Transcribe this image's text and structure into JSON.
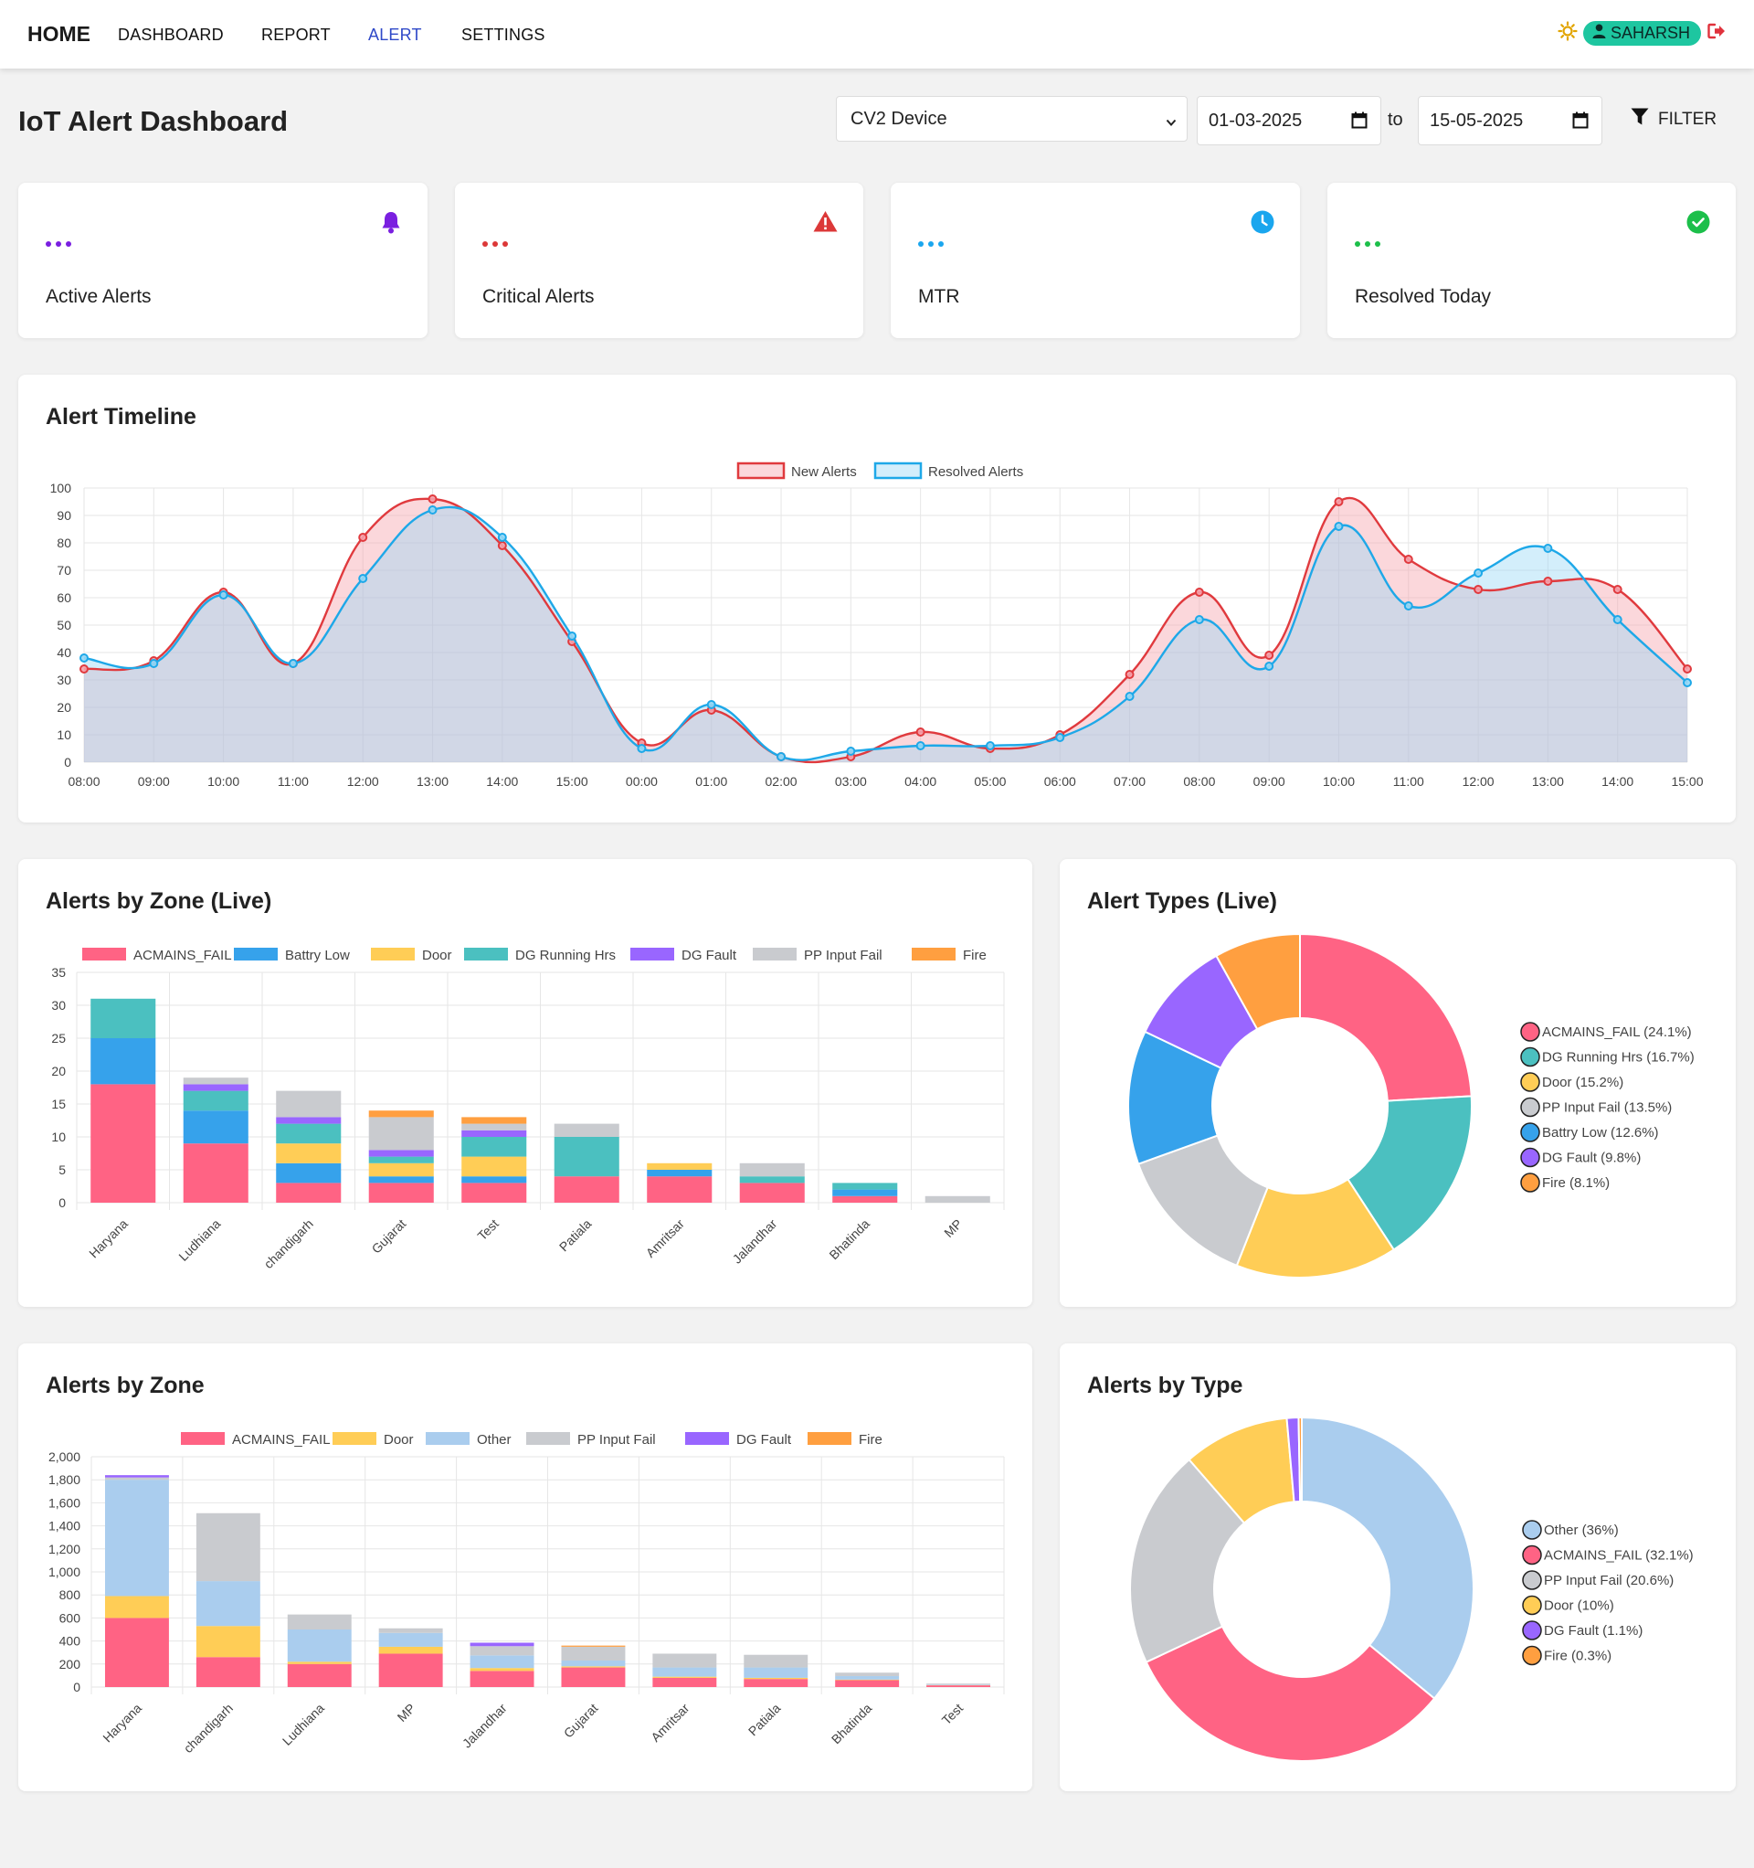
{
  "nav": {
    "home": "HOME",
    "links": [
      "DASHBOARD",
      "REPORT",
      "ALERT",
      "SETTINGS"
    ],
    "active": "ALERT",
    "user": "SAHARSH"
  },
  "page": {
    "title": "IoT Alert Dashboard"
  },
  "filters": {
    "device": "CV2 Device",
    "from_date": "01-03-2025",
    "to_label": "to",
    "to_date": "15-05-2025",
    "filter_label": "FILTER"
  },
  "stats": [
    {
      "label": "Active Alerts",
      "color": "#7a1fe0",
      "icon": "bell-icon"
    },
    {
      "label": "Critical Alerts",
      "color": "#dc3838",
      "icon": "warning-icon"
    },
    {
      "label": "MTR",
      "color": "#1aa6ee",
      "icon": "clock-icon"
    },
    {
      "label": "Resolved Today",
      "color": "#1cbf4a",
      "icon": "check-circle-icon"
    }
  ],
  "charts": {
    "timeline_title": "Alert Timeline",
    "zone_live_title": "Alerts by Zone (Live)",
    "types_live_title": "Alert Types (Live)",
    "zone_title": "Alerts by Zone",
    "type_title": "Alerts by Type"
  },
  "chart_data": [
    {
      "id": "timeline",
      "type": "area",
      "title": "Alert Timeline",
      "x": [
        "08:00",
        "09:00",
        "10:00",
        "11:00",
        "12:00",
        "13:00",
        "14:00",
        "15:00",
        "00:00",
        "01:00",
        "02:00",
        "03:00",
        "04:00",
        "05:00",
        "06:00",
        "07:00",
        "08:00",
        "09:00",
        "10:00",
        "11:00",
        "12:00",
        "13:00",
        "14:00",
        "15:00"
      ],
      "ylim": [
        0,
        100
      ],
      "yticks": [
        0,
        10,
        20,
        30,
        40,
        50,
        60,
        70,
        80,
        90,
        100
      ],
      "series": [
        {
          "name": "New Alerts",
          "color": "#e03a3e",
          "fill": "rgba(245,160,170,0.42)",
          "values": [
            34,
            37,
            62,
            36,
            82,
            96,
            79,
            44,
            7,
            19,
            2,
            2,
            11,
            5,
            10,
            32,
            62,
            39,
            95,
            74,
            63,
            66,
            63,
            34
          ]
        },
        {
          "name": "Resolved Alerts",
          "color": "#1ea8e8",
          "fill": "rgba(150,215,245,0.42)",
          "values": [
            38,
            36,
            61,
            36,
            67,
            92,
            82,
            46,
            5,
            21,
            2,
            4,
            6,
            6,
            9,
            24,
            52,
            35,
            86,
            57,
            69,
            78,
            52,
            29
          ]
        }
      ]
    },
    {
      "id": "zone_live",
      "type": "bar",
      "stacked": true,
      "title": "Alerts by Zone (Live)",
      "categories": [
        "Haryana",
        "Ludhiana",
        "chandigarh",
        "Gujarat",
        "Test",
        "Patiala",
        "Amritsar",
        "Jalandhar",
        "Bhatinda",
        "MP"
      ],
      "ylim": [
        0,
        35
      ],
      "yticks": [
        0,
        5,
        10,
        15,
        20,
        25,
        30,
        35
      ],
      "series": [
        {
          "name": "ACMAINS_FAIL",
          "color": "#ff6384",
          "values": [
            18,
            9,
            3,
            3,
            3,
            4,
            4,
            3,
            1,
            0
          ]
        },
        {
          "name": "Battry Low",
          "color": "#36a2eb",
          "values": [
            7,
            5,
            3,
            1,
            1,
            0,
            1,
            0,
            1,
            0
          ]
        },
        {
          "name": "Door",
          "color": "#ffcd56",
          "values": [
            0,
            0,
            3,
            2,
            3,
            0,
            1,
            0,
            0,
            0
          ]
        },
        {
          "name": "DG Running Hrs",
          "color": "#4bc0c0",
          "values": [
            6,
            3,
            3,
            1,
            3,
            6,
            0,
            1,
            1,
            0
          ]
        },
        {
          "name": "DG Fault",
          "color": "#9966ff",
          "values": [
            0,
            1,
            1,
            1,
            1,
            0,
            0,
            0,
            0,
            0
          ]
        },
        {
          "name": "PP Input Fail",
          "color": "#c9cbcf",
          "values": [
            0,
            1,
            4,
            5,
            1,
            2,
            0,
            2,
            0,
            1
          ]
        },
        {
          "name": "Fire",
          "color": "#ff9f40",
          "values": [
            0,
            0,
            0,
            1,
            1,
            0,
            0,
            0,
            0,
            0
          ]
        }
      ]
    },
    {
      "id": "types_live",
      "type": "pie",
      "title": "Alert Types (Live)",
      "slices": [
        {
          "name": "ACMAINS_FAIL",
          "value": 24.1,
          "color": "#ff6384",
          "label": "ACMAINS_FAIL (24.1%)"
        },
        {
          "name": "DG Running Hrs",
          "value": 16.7,
          "color": "#4bc0c0",
          "label": "DG Running Hrs (16.7%)"
        },
        {
          "name": "Door",
          "value": 15.2,
          "color": "#ffcd56",
          "label": "Door (15.2%)"
        },
        {
          "name": "PP Input Fail",
          "value": 13.5,
          "color": "#c9cbcf",
          "label": "PP Input Fail (13.5%)"
        },
        {
          "name": "Battry Low",
          "value": 12.6,
          "color": "#36a2eb",
          "label": "Battry Low (12.6%)"
        },
        {
          "name": "DG Fault",
          "value": 9.8,
          "color": "#9966ff",
          "label": "DG Fault (9.8%)"
        },
        {
          "name": "Fire",
          "value": 8.1,
          "color": "#ff9f40",
          "label": "Fire (8.1%)"
        }
      ]
    },
    {
      "id": "zone",
      "type": "bar",
      "stacked": true,
      "title": "Alerts by Zone",
      "categories": [
        "Haryana",
        "chandigarh",
        "Ludhiana",
        "MP",
        "Jalandhar",
        "Gujarat",
        "Amritsar",
        "Patiala",
        "Bhatinda",
        "Test"
      ],
      "ylim": [
        0,
        2000
      ],
      "yticks": [
        0,
        200,
        400,
        600,
        800,
        1000,
        1200,
        1400,
        1600,
        1800,
        2000
      ],
      "ytick_labels": [
        "0",
        "200",
        "400",
        "600",
        "800",
        "1,000",
        "1,200",
        "1,400",
        "1,600",
        "1,800",
        "2,000"
      ],
      "series": [
        {
          "name": "ACMAINS_FAIL",
          "color": "#ff6384",
          "values": [
            600,
            260,
            200,
            290,
            140,
            170,
            80,
            70,
            60,
            15
          ]
        },
        {
          "name": "Door",
          "color": "#ffcd56",
          "values": [
            190,
            270,
            20,
            60,
            25,
            10,
            10,
            10,
            5,
            2
          ]
        },
        {
          "name": "Other",
          "color": "#aacdee",
          "values": [
            1010,
            390,
            280,
            120,
            110,
            50,
            80,
            90,
            30,
            5
          ]
        },
        {
          "name": "PP Input Fail",
          "color": "#c9cbcf",
          "values": [
            20,
            590,
            130,
            40,
            80,
            120,
            120,
            110,
            30,
            8
          ]
        },
        {
          "name": "DG Fault",
          "color": "#9966ff",
          "values": [
            20,
            0,
            0,
            0,
            30,
            0,
            0,
            0,
            0,
            0
          ]
        },
        {
          "name": "Fire",
          "color": "#ff9f40",
          "values": [
            0,
            0,
            0,
            0,
            0,
            10,
            0,
            0,
            0,
            0
          ]
        }
      ]
    },
    {
      "id": "type",
      "type": "pie",
      "title": "Alerts by Type",
      "slices": [
        {
          "name": "Other",
          "value": 36,
          "color": "#aacdee",
          "label": "Other (36%)"
        },
        {
          "name": "ACMAINS_FAIL",
          "value": 32.1,
          "color": "#ff6384",
          "label": "ACMAINS_FAIL (32.1%)"
        },
        {
          "name": "PP Input Fail",
          "value": 20.6,
          "color": "#c9cbcf",
          "label": "PP Input Fail (20.6%)"
        },
        {
          "name": "Door",
          "value": 10,
          "color": "#ffcd56",
          "label": "Door (10%)"
        },
        {
          "name": "DG Fault",
          "value": 1.1,
          "color": "#9966ff",
          "label": "DG Fault (1.1%)"
        },
        {
          "name": "Fire",
          "value": 0.3,
          "color": "#ff9f40",
          "label": "Fire (0.3%)"
        }
      ]
    }
  ]
}
